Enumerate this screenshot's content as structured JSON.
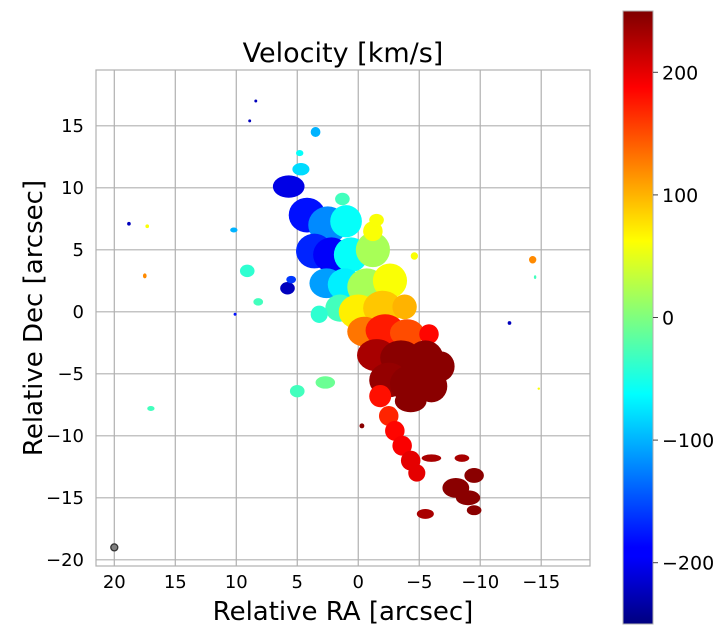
{
  "chart_data": {
    "type": "heatmap",
    "title": "Velocity [km/s]",
    "xlabel": "Relative RA [arcsec]",
    "ylabel": "Relative Dec [arcsec]",
    "xlim": [
      21.5,
      -19
    ],
    "ylim": [
      -20.5,
      19.5
    ],
    "xticks": [
      20,
      15,
      10,
      5,
      0,
      -5,
      -10,
      -15
    ],
    "xtick_labels": [
      "20",
      "15",
      "10",
      "5",
      "0",
      "−5",
      "−10",
      "−15"
    ],
    "yticks": [
      15,
      10,
      5,
      0,
      -5,
      -10,
      -15,
      -20
    ],
    "ytick_labels": [
      "15",
      "10",
      "5",
      "0",
      "−5",
      "−10",
      "−15",
      "−20"
    ],
    "grid": true,
    "colormap": "jet",
    "colorbar": {
      "vmin": -250,
      "vmax": 250,
      "ticks": [
        200,
        100,
        0,
        -100,
        -200
      ],
      "tick_labels": [
        "200",
        "100",
        "0",
        "−100",
        "−200"
      ]
    },
    "beam": {
      "x": 20,
      "y": -19,
      "label": "beam"
    },
    "velocity_field": [
      {
        "ra": 5.7,
        "dec": 10.1,
        "rx": 1.3,
        "ry": 0.9,
        "v": -200
      },
      {
        "ra": 3.5,
        "dec": 14.5,
        "rx": 0.4,
        "ry": 0.4,
        "v": -100
      },
      {
        "ra": 4.2,
        "dec": 7.8,
        "rx": 1.5,
        "ry": 1.4,
        "v": -180
      },
      {
        "ra": 2.5,
        "dec": 7.0,
        "rx": 1.6,
        "ry": 1.5,
        "v": -120
      },
      {
        "ra": 1.0,
        "dec": 7.3,
        "rx": 1.3,
        "ry": 1.3,
        "v": -60
      },
      {
        "ra": 3.6,
        "dec": 4.9,
        "rx": 1.5,
        "ry": 1.4,
        "v": -170
      },
      {
        "ra": 2.2,
        "dec": 4.6,
        "rx": 1.5,
        "ry": 1.4,
        "v": -190
      },
      {
        "ra": 0.6,
        "dec": 4.6,
        "rx": 1.4,
        "ry": 1.4,
        "v": -60
      },
      {
        "ra": -1.2,
        "dec": 5.0,
        "rx": 1.4,
        "ry": 1.4,
        "v": 20
      },
      {
        "ra": -1.2,
        "dec": 6.5,
        "rx": 0.8,
        "ry": 0.8,
        "v": 60
      },
      {
        "ra": 2.6,
        "dec": 2.3,
        "rx": 1.4,
        "ry": 1.2,
        "v": -110
      },
      {
        "ra": 1.1,
        "dec": 2.2,
        "rx": 1.4,
        "ry": 1.3,
        "v": -70
      },
      {
        "ra": -0.7,
        "dec": 2.0,
        "rx": 1.6,
        "ry": 1.5,
        "v": 20
      },
      {
        "ra": -2.6,
        "dec": 2.5,
        "rx": 1.4,
        "ry": 1.4,
        "v": 60
      },
      {
        "ra": 1.5,
        "dec": 0.3,
        "rx": 1.2,
        "ry": 1.1,
        "v": -30
      },
      {
        "ra": 0.0,
        "dec": 0.0,
        "rx": 1.6,
        "ry": 1.4,
        "v": 70
      },
      {
        "ra": -2.0,
        "dec": 0.3,
        "rx": 1.6,
        "ry": 1.4,
        "v": 90
      },
      {
        "ra": -3.8,
        "dec": 0.4,
        "rx": 1.0,
        "ry": 1.0,
        "v": 100
      },
      {
        "ra": -0.5,
        "dec": -1.6,
        "rx": 1.4,
        "ry": 1.2,
        "v": 130
      },
      {
        "ra": -2.2,
        "dec": -1.5,
        "rx": 1.6,
        "ry": 1.3,
        "v": 175
      },
      {
        "ra": -4.0,
        "dec": -1.7,
        "rx": 1.4,
        "ry": 1.1,
        "v": 150
      },
      {
        "ra": -5.8,
        "dec": -1.8,
        "rx": 0.8,
        "ry": 0.8,
        "v": 185
      },
      {
        "ra": -1.5,
        "dec": -3.5,
        "rx": 1.6,
        "ry": 1.3,
        "v": 230
      },
      {
        "ra": -3.5,
        "dec": -3.7,
        "rx": 1.7,
        "ry": 1.4,
        "v": 245
      },
      {
        "ra": -5.5,
        "dec": -3.8,
        "rx": 1.5,
        "ry": 1.5,
        "v": 245
      },
      {
        "ra": -6.8,
        "dec": -4.4,
        "rx": 1.1,
        "ry": 1.2,
        "v": 245
      },
      {
        "ra": -2.5,
        "dec": -5.5,
        "rx": 1.6,
        "ry": 1.4,
        "v": 240
      },
      {
        "ra": -4.3,
        "dec": -5.8,
        "rx": 1.7,
        "ry": 1.5,
        "v": 245
      },
      {
        "ra": -6.0,
        "dec": -6.0,
        "rx": 1.3,
        "ry": 1.3,
        "v": 245
      },
      {
        "ra": -4.3,
        "dec": -7.2,
        "rx": 1.3,
        "ry": 0.9,
        "v": 245
      },
      {
        "ra": -1.8,
        "dec": -6.8,
        "rx": 0.9,
        "ry": 0.9,
        "v": 180
      },
      {
        "ra": -2.5,
        "dec": -8.4,
        "rx": 0.8,
        "ry": 0.8,
        "v": 170
      },
      {
        "ra": -3.0,
        "dec": -9.6,
        "rx": 0.8,
        "ry": 0.8,
        "v": 185
      },
      {
        "ra": -3.6,
        "dec": -10.8,
        "rx": 0.8,
        "ry": 0.8,
        "v": 190
      },
      {
        "ra": -4.3,
        "dec": -12.0,
        "rx": 0.8,
        "ry": 0.8,
        "v": 200
      },
      {
        "ra": -4.8,
        "dec": -13.0,
        "rx": 0.7,
        "ry": 0.7,
        "v": 200
      },
      {
        "ra": -6.0,
        "dec": -11.8,
        "rx": 0.8,
        "ry": 0.3,
        "v": 230
      },
      {
        "ra": -8.5,
        "dec": -11.8,
        "rx": 0.6,
        "ry": 0.3,
        "v": 230
      },
      {
        "ra": -9.5,
        "dec": -13.2,
        "rx": 0.8,
        "ry": 0.6,
        "v": 245
      },
      {
        "ra": -8.0,
        "dec": -14.2,
        "rx": 1.1,
        "ry": 0.8,
        "v": 245
      },
      {
        "ra": -9.0,
        "dec": -15.0,
        "rx": 1.0,
        "ry": 0.6,
        "v": 245
      },
      {
        "ra": -5.5,
        "dec": -16.3,
        "rx": 0.7,
        "ry": 0.4,
        "v": 230
      },
      {
        "ra": -9.5,
        "dec": -16.0,
        "rx": 0.6,
        "ry": 0.4,
        "v": 245
      },
      {
        "ra": 4.7,
        "dec": 11.5,
        "rx": 0.7,
        "ry": 0.5,
        "v": -80
      },
      {
        "ra": 1.3,
        "dec": 9.1,
        "rx": 0.6,
        "ry": 0.5,
        "v": -30
      },
      {
        "ra": -1.5,
        "dec": 7.4,
        "rx": 0.6,
        "ry": 0.5,
        "v": 60
      },
      {
        "ra": 5.8,
        "dec": 1.9,
        "rx": 0.6,
        "ry": 0.5,
        "v": -220
      },
      {
        "ra": 5.5,
        "dec": 2.6,
        "rx": 0.4,
        "ry": 0.3,
        "v": -160
      },
      {
        "ra": 9.1,
        "dec": 3.3,
        "rx": 0.6,
        "ry": 0.5,
        "v": -40
      },
      {
        "ra": 8.2,
        "dec": 0.8,
        "rx": 0.4,
        "ry": 0.3,
        "v": -30
      },
      {
        "ra": 3.2,
        "dec": -0.2,
        "rx": 0.7,
        "ry": 0.7,
        "v": -40
      },
      {
        "ra": 5.0,
        "dec": -6.4,
        "rx": 0.6,
        "ry": 0.5,
        "v": -30
      },
      {
        "ra": 2.7,
        "dec": -5.7,
        "rx": 0.8,
        "ry": 0.5,
        "v": -10
      },
      {
        "ra": 10.2,
        "dec": 6.6,
        "rx": 0.3,
        "ry": 0.2,
        "v": -100
      },
      {
        "ra": 17.0,
        "dec": -7.8,
        "rx": 0.3,
        "ry": 0.2,
        "v": -30
      },
      {
        "ra": 17.5,
        "dec": 2.9,
        "rx": 0.15,
        "ry": 0.2,
        "v": 120
      },
      {
        "ra": 18.8,
        "dec": 7.1,
        "rx": 0.15,
        "ry": 0.15,
        "v": -220
      },
      {
        "ra": 17.3,
        "dec": 6.9,
        "rx": 0.15,
        "ry": 0.15,
        "v": 60
      },
      {
        "ra": -4.6,
        "dec": 4.5,
        "rx": 0.3,
        "ry": 0.3,
        "v": 60
      },
      {
        "ra": -14.3,
        "dec": 4.2,
        "rx": 0.3,
        "ry": 0.3,
        "v": 120
      },
      {
        "ra": -14.5,
        "dec": 2.8,
        "rx": 0.1,
        "ry": 0.15,
        "v": -30
      },
      {
        "ra": -12.4,
        "dec": -0.9,
        "rx": 0.15,
        "ry": 0.15,
        "v": -220
      },
      {
        "ra": -14.8,
        "dec": -6.2,
        "rx": 0.1,
        "ry": 0.1,
        "v": 60
      },
      {
        "ra": 8.4,
        "dec": 17.0,
        "rx": 0.12,
        "ry": 0.12,
        "v": -220
      },
      {
        "ra": 8.9,
        "dec": 15.4,
        "rx": 0.12,
        "ry": 0.12,
        "v": -220
      },
      {
        "ra": 10.1,
        "dec": -0.2,
        "rx": 0.12,
        "ry": 0.12,
        "v": -180
      },
      {
        "ra": -0.3,
        "dec": -9.2,
        "rx": 0.2,
        "ry": 0.2,
        "v": 245
      },
      {
        "ra": 4.8,
        "dec": 12.8,
        "rx": 0.3,
        "ry": 0.25,
        "v": -60
      }
    ]
  }
}
